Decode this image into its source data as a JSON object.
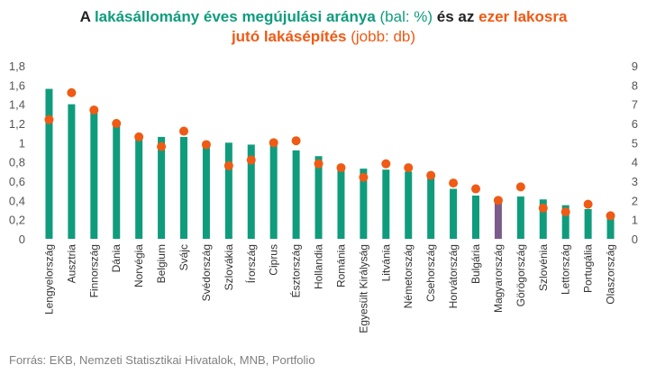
{
  "title": {
    "line1_part1": "A ",
    "line1_part2": "lakásállomány éves megújulási aránya",
    "line1_part3": " (bal: %)",
    "line1_part4": " és az ",
    "line1_part5": "ezer lakosra",
    "line2_part1": "jutó lakásépítés",
    "line2_part2": " (jobb: db)"
  },
  "source": "Forrás: EKB, Nemzeti Statisztikai Hivatalok, MNB, Portfolio",
  "colors": {
    "bar": "#0f9c7d",
    "bar_highlight": "#7b5b8c",
    "dot": "#ef5a14"
  },
  "chart_data": {
    "type": "bar",
    "categories": [
      "Lengyelország",
      "Ausztria",
      "Finnország",
      "Dánia",
      "Norvégia",
      "Belgium",
      "Svájc",
      "Svédország",
      "Szlovákia",
      "Írország",
      "Ciprus",
      "Észtország",
      "Hollandia",
      "Románia",
      "Egyesült Királyság",
      "Litvánia",
      "Németország",
      "Csehország",
      "Horvátország",
      "Bulgária",
      "Magyarország",
      "Görögország",
      "Szlovénia",
      "Lettország",
      "Portugália",
      "Olaszország"
    ],
    "highlight_category": "Magyarország",
    "series": [
      {
        "type": "bar",
        "axis": "left",
        "values": [
          1.56,
          1.4,
          1.33,
          1.18,
          1.06,
          1.06,
          1.06,
          1.01,
          1.0,
          0.98,
          0.97,
          0.92,
          0.86,
          0.75,
          0.73,
          0.72,
          0.7,
          0.66,
          0.52,
          0.45,
          0.4,
          0.44,
          0.41,
          0.35,
          0.31,
          0.23
        ]
      },
      {
        "type": "scatter",
        "axis": "right",
        "values": [
          6.2,
          7.6,
          6.7,
          6.0,
          5.3,
          4.8,
          5.6,
          4.9,
          3.8,
          4.1,
          5.0,
          5.1,
          3.9,
          3.7,
          3.2,
          3.9,
          3.7,
          3.3,
          2.9,
          2.6,
          2.0,
          2.7,
          1.6,
          1.4,
          1.8,
          1.2
        ]
      }
    ],
    "y_left": {
      "min": 0,
      "max": 1.8,
      "step": 0.2,
      "ticks": [
        "0",
        "0,2",
        "0,4",
        "0,6",
        "0,8",
        "1",
        "1,2",
        "1,4",
        "1,6",
        "1,8"
      ]
    },
    "y_right": {
      "min": 0,
      "max": 9,
      "step": 1,
      "ticks": [
        "0",
        "1",
        "2",
        "3",
        "4",
        "5",
        "6",
        "7",
        "8",
        "9"
      ]
    },
    "grid": false,
    "legend": "none"
  }
}
